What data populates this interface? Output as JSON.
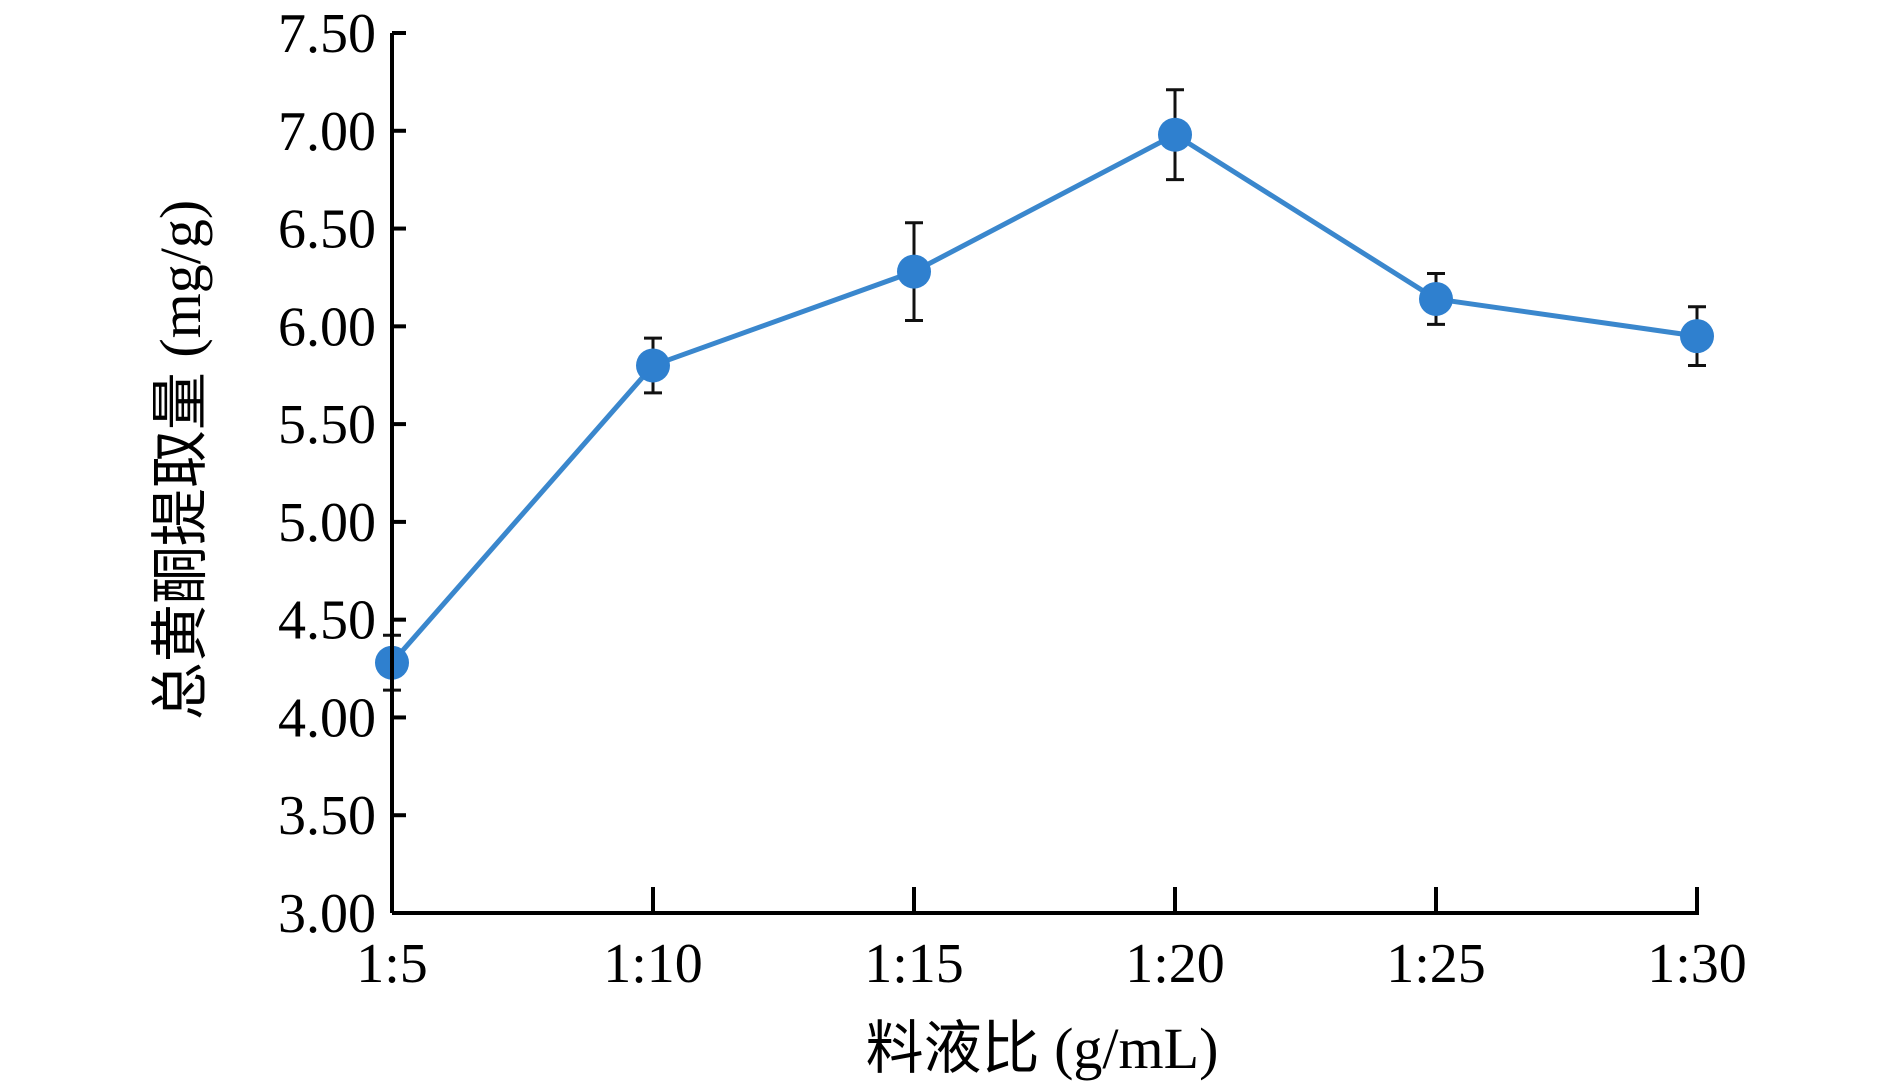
{
  "chart_data": {
    "type": "line",
    "title": "",
    "xlabel": "料液比 (g/mL)",
    "ylabel": "总黄酮提取量 (mg/g)",
    "categories": [
      "1:5",
      "1:10",
      "1:15",
      "1:20",
      "1:25",
      "1:30"
    ],
    "ylim": [
      3.0,
      7.5
    ],
    "yticks": [
      "3.00",
      "3.50",
      "4.00",
      "4.50",
      "5.00",
      "5.50",
      "6.00",
      "6.50",
      "7.00",
      "7.50"
    ],
    "grid": false,
    "legend": "none",
    "series": [
      {
        "values": [
          4.28,
          5.8,
          6.28,
          6.98,
          6.14,
          5.95
        ],
        "errors": [
          0.14,
          0.14,
          0.25,
          0.23,
          0.13,
          0.15
        ],
        "color": "#3a87cd"
      }
    ],
    "colors": {
      "line": "#3a87cd",
      "marker": "#2f80cf",
      "error_bar": "#111111",
      "axis": "#000000"
    }
  }
}
